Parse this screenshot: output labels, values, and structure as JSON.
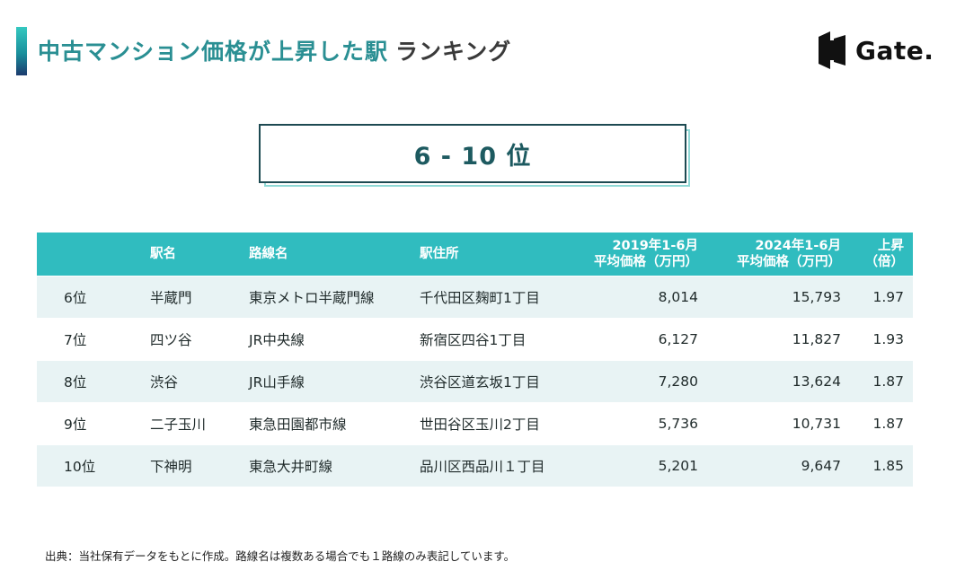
{
  "header": {
    "title_main": "中古マンション価格が上昇した駅",
    "title_sub": "ランキング",
    "logo_text": "Gate."
  },
  "rank_range": "6 - 10 位",
  "table": {
    "headers": {
      "rank": "",
      "station": "駅名",
      "line": "路線名",
      "address": "駅住所",
      "price2019_line1": "2019年1-6月",
      "price2019_line2": "平均価格（万円）",
      "price2024_line1": "2024年1-6月",
      "price2024_line2": "平均価格（万円）",
      "ratio_line1": "上昇",
      "ratio_line2": "（倍）"
    },
    "rows": [
      {
        "rank": "6位",
        "station": "半蔵門",
        "line": "東京メトロ半蔵門線",
        "address": "千代田区麹町1丁目",
        "price2019": "8,014",
        "price2024": "15,793",
        "ratio": "1.97"
      },
      {
        "rank": "7位",
        "station": "四ツ谷",
        "line": "JR中央線",
        "address": "新宿区四谷1丁目",
        "price2019": "6,127",
        "price2024": "11,827",
        "ratio": "1.93"
      },
      {
        "rank": "8位",
        "station": "渋谷",
        "line": "JR山手線",
        "address": "渋谷区道玄坂1丁目",
        "price2019": "7,280",
        "price2024": "13,624",
        "ratio": "1.87"
      },
      {
        "rank": "9位",
        "station": "二子玉川",
        "line": "東急田園都市線",
        "address": "世田谷区玉川2丁目",
        "price2019": "5,736",
        "price2024": "10,731",
        "ratio": "1.87"
      },
      {
        "rank": "10位",
        "station": "下神明",
        "line": "東急大井町線",
        "address": "品川区西品川１丁目",
        "price2019": "5,201",
        "price2024": "9,647",
        "ratio": "1.85"
      }
    ]
  },
  "source_note": "出典：当社保有データをもとに作成。路線名は複数ある場合でも１路線のみ表記しています。",
  "colors": {
    "accent": "#30bcbf",
    "title": "#2a8f93",
    "row_alt": "#e8f3f4"
  }
}
